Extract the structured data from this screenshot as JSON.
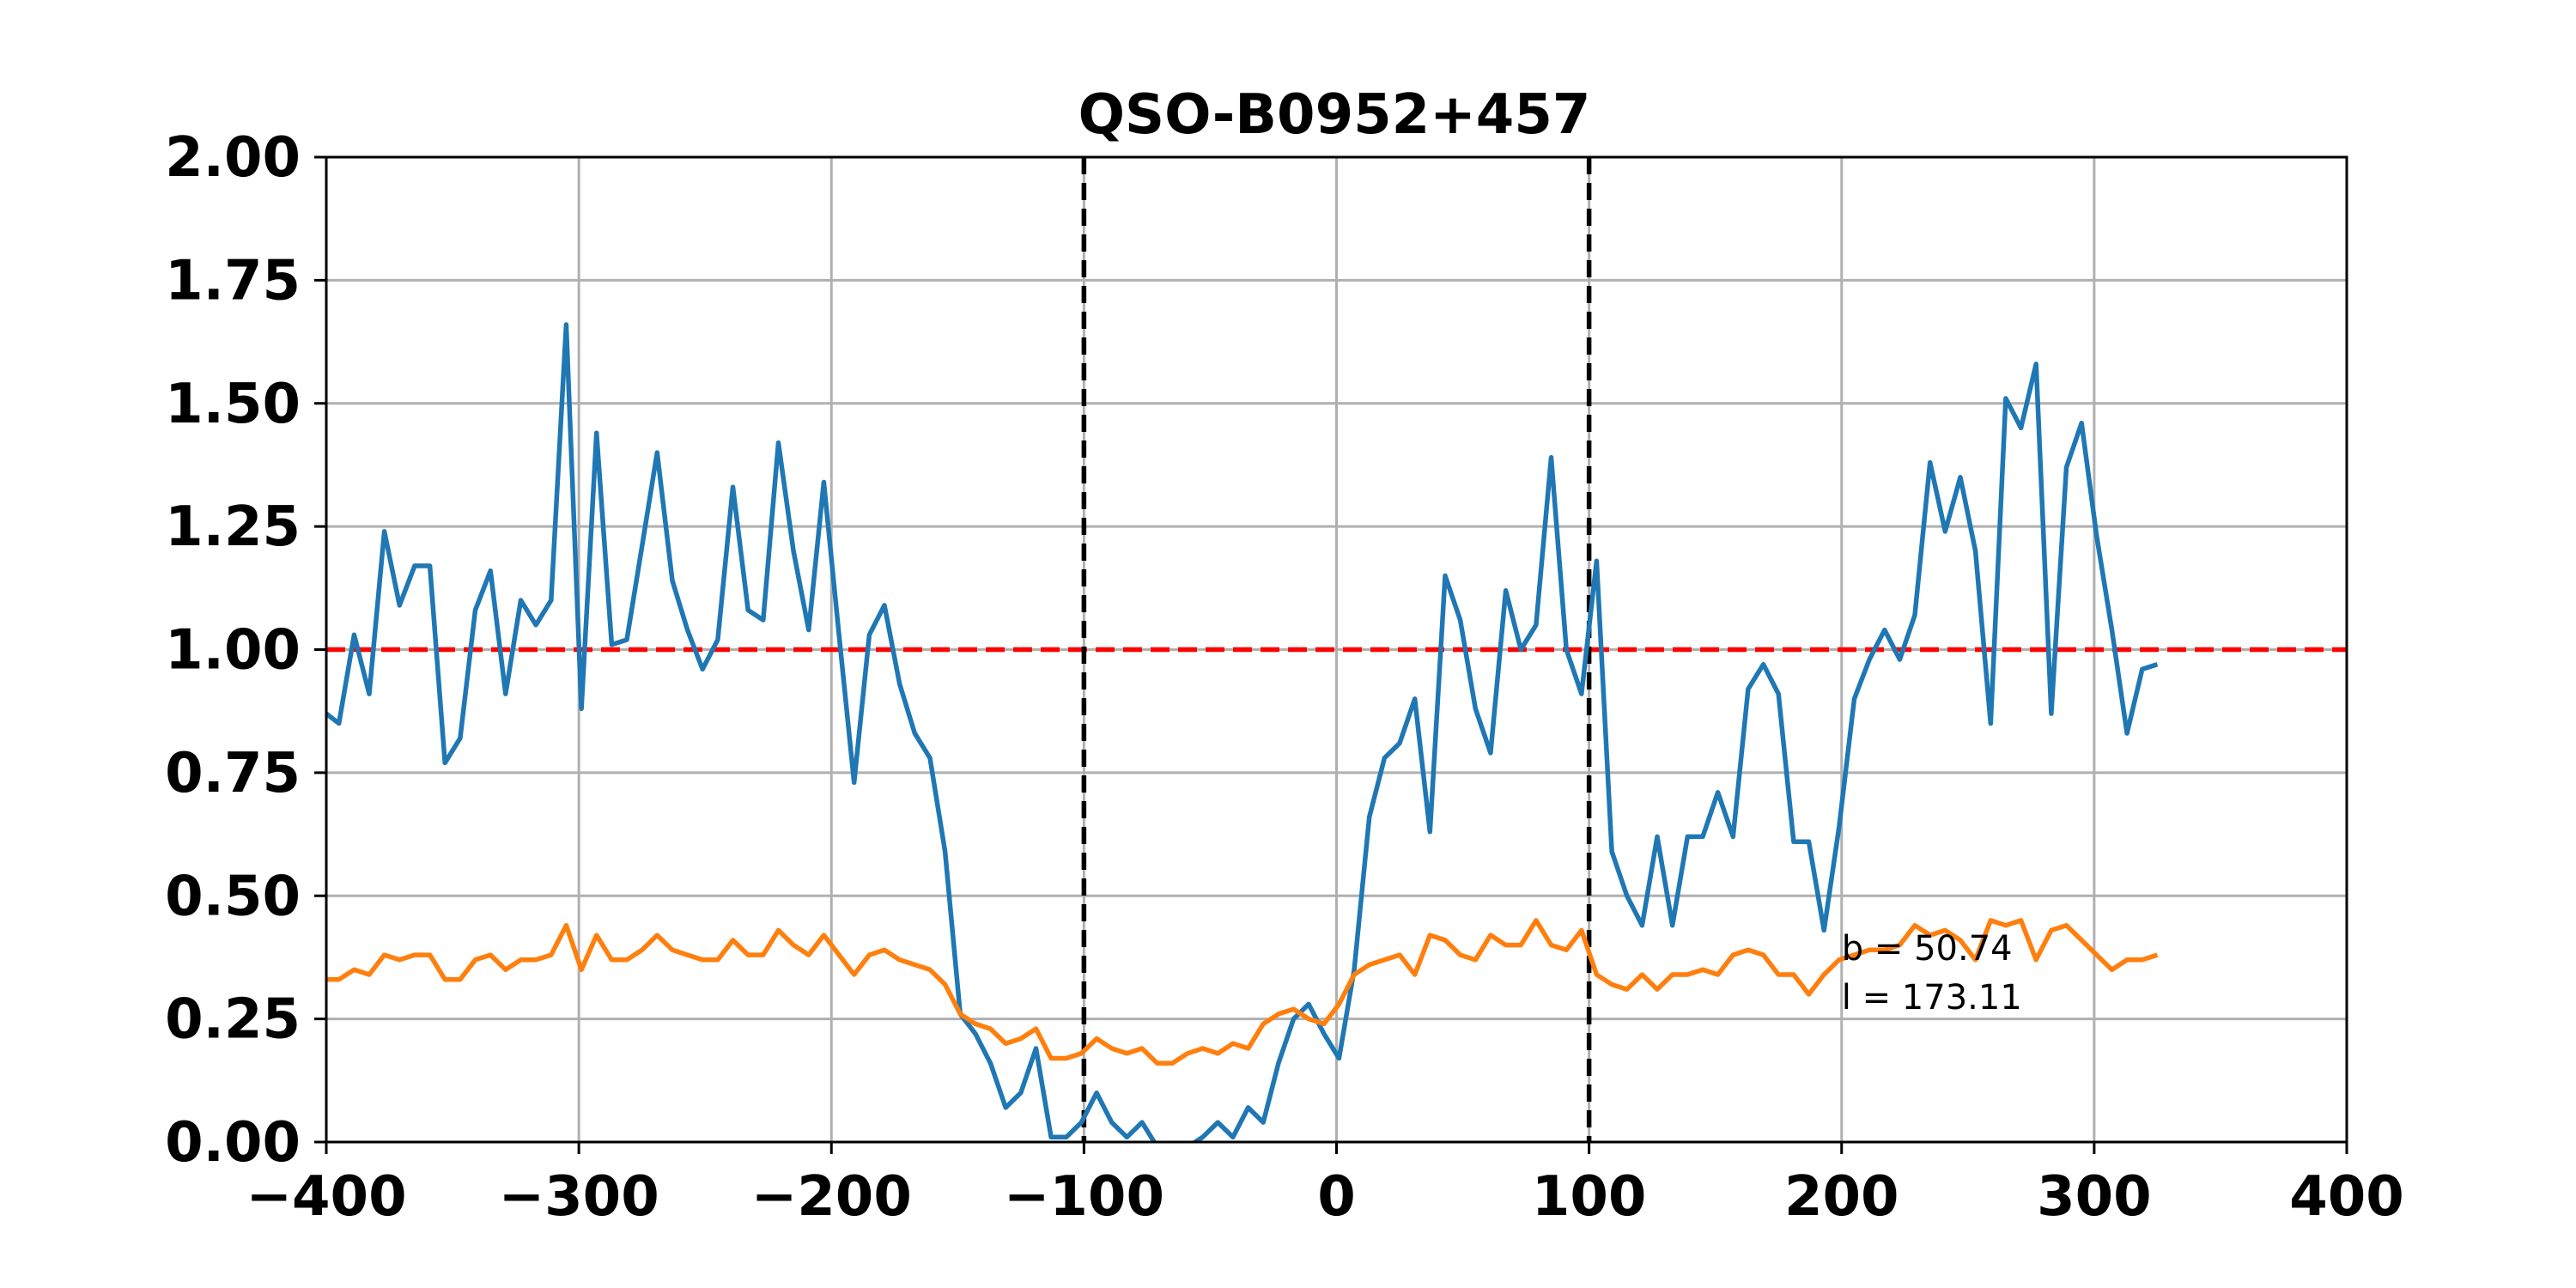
{
  "chart_data": {
    "type": "line",
    "title": "QSO-B0952+457",
    "xlabel": "",
    "ylabel": "",
    "xlim": [
      -400,
      400
    ],
    "ylim": [
      0,
      2
    ],
    "xticks": [
      -400,
      -300,
      -200,
      -100,
      0,
      100,
      200,
      300,
      400
    ],
    "yticks": [
      0,
      0.25,
      0.5,
      0.75,
      1.0,
      1.25,
      1.5,
      1.75,
      2.0
    ],
    "xtick_labels": [
      "−400",
      "−300",
      "−200",
      "−100",
      "0",
      "100",
      "200",
      "300",
      "400"
    ],
    "ytick_labels": [
      "0.00",
      "0.25",
      "0.50",
      "0.75",
      "1.00",
      "1.25",
      "1.50",
      "1.75",
      "2.00"
    ],
    "grid": true,
    "colors": {
      "flux": "#1f77b4",
      "error": "#ff7f0e",
      "continuum": "#ff0000",
      "vline": "#000000",
      "grid": "#b0b0b0"
    },
    "reference_lines": {
      "horizontal": 1.0,
      "vertical": [
        -100,
        100
      ]
    },
    "annotations": [
      {
        "text": "b = 50.74",
        "x": 200,
        "y": 0.37
      },
      {
        "text": "l = 173.11",
        "x": 200,
        "y": 0.27
      }
    ],
    "series": [
      {
        "color": "#1f77b4",
        "points": [
          [
            -400,
            0.87
          ],
          [
            -395,
            0.85
          ],
          [
            -389,
            1.03
          ],
          [
            -383,
            0.91
          ],
          [
            -377,
            1.24
          ],
          [
            -371,
            1.09
          ],
          [
            -365,
            1.17
          ],
          [
            -359,
            1.17
          ],
          [
            -353,
            0.77
          ],
          [
            -347,
            0.82
          ],
          [
            -341,
            1.08
          ],
          [
            -335,
            1.16
          ],
          [
            -329,
            0.91
          ],
          [
            -323,
            1.1
          ],
          [
            -317,
            1.05
          ],
          [
            -311,
            1.1
          ],
          [
            -305,
            1.66
          ],
          [
            -299,
            0.88
          ],
          [
            -293,
            1.44
          ],
          [
            -287,
            1.01
          ],
          [
            -281,
            1.02
          ],
          [
            -275,
            1.21
          ],
          [
            -269,
            1.4
          ],
          [
            -263,
            1.14
          ],
          [
            -257,
            1.04
          ],
          [
            -251,
            0.96
          ],
          [
            -245,
            1.02
          ],
          [
            -239,
            1.33
          ],
          [
            -233,
            1.08
          ],
          [
            -227,
            1.06
          ],
          [
            -221,
            1.42
          ],
          [
            -215,
            1.2
          ],
          [
            -209,
            1.04
          ],
          [
            -203,
            1.34
          ],
          [
            -197,
            1.03
          ],
          [
            -191,
            0.73
          ],
          [
            -185,
            1.03
          ],
          [
            -179,
            1.09
          ],
          [
            -173,
            0.93
          ],
          [
            -167,
            0.83
          ],
          [
            -161,
            0.78
          ],
          [
            -155,
            0.59
          ],
          [
            -149,
            0.26
          ],
          [
            -143,
            0.22
          ],
          [
            -137,
            0.16
          ],
          [
            -131,
            0.07
          ],
          [
            -125,
            0.1
          ],
          [
            -119,
            0.19
          ],
          [
            -113,
            0.01
          ],
          [
            -107,
            0.01
          ],
          [
            -101,
            0.04
          ],
          [
            -95,
            0.1
          ],
          [
            -89,
            0.04
          ],
          [
            -83,
            0.01
          ],
          [
            -77,
            0.04
          ],
          [
            -71,
            -0.01
          ],
          [
            -65,
            -0.02
          ],
          [
            -59,
            -0.01
          ],
          [
            -53,
            0.01
          ],
          [
            -47,
            0.04
          ],
          [
            -41,
            0.01
          ],
          [
            -35,
            0.07
          ],
          [
            -29,
            0.04
          ],
          [
            -23,
            0.16
          ],
          [
            -17,
            0.25
          ],
          [
            -11,
            0.28
          ],
          [
            -5,
            0.22
          ],
          [
            1,
            0.17
          ],
          [
            7,
            0.35
          ],
          [
            13,
            0.66
          ],
          [
            19,
            0.78
          ],
          [
            25,
            0.81
          ],
          [
            31,
            0.9
          ],
          [
            37,
            0.63
          ],
          [
            43,
            1.15
          ],
          [
            49,
            1.06
          ],
          [
            55,
            0.88
          ],
          [
            61,
            0.79
          ],
          [
            67,
            1.12
          ],
          [
            73,
            1.0
          ],
          [
            79,
            1.05
          ],
          [
            85,
            1.39
          ],
          [
            91,
            1.0
          ],
          [
            97,
            0.91
          ],
          [
            103,
            1.18
          ],
          [
            109,
            0.59
          ],
          [
            115,
            0.5
          ],
          [
            121,
            0.44
          ],
          [
            127,
            0.62
          ],
          [
            133,
            0.44
          ],
          [
            139,
            0.62
          ],
          [
            145,
            0.62
          ],
          [
            151,
            0.71
          ],
          [
            157,
            0.62
          ],
          [
            163,
            0.92
          ],
          [
            169,
            0.97
          ],
          [
            175,
            0.91
          ],
          [
            181,
            0.61
          ],
          [
            187,
            0.61
          ],
          [
            193,
            0.43
          ],
          [
            199,
            0.64
          ],
          [
            205,
            0.9
          ],
          [
            211,
            0.98
          ],
          [
            217,
            1.04
          ],
          [
            223,
            0.98
          ],
          [
            229,
            1.07
          ],
          [
            235,
            1.38
          ],
          [
            241,
            1.24
          ],
          [
            247,
            1.35
          ],
          [
            253,
            1.2
          ],
          [
            259,
            0.85
          ],
          [
            265,
            1.51
          ],
          [
            271,
            1.45
          ],
          [
            277,
            1.58
          ],
          [
            283,
            0.87
          ],
          [
            289,
            1.37
          ],
          [
            295,
            1.46
          ],
          [
            301,
            1.23
          ],
          [
            307,
            1.04
          ],
          [
            313,
            0.83
          ],
          [
            319,
            0.96
          ],
          [
            325,
            0.97
          ]
        ]
      },
      {
        "color": "#ff7f0e",
        "points": [
          [
            -400,
            0.33
          ],
          [
            -395,
            0.33
          ],
          [
            -389,
            0.35
          ],
          [
            -383,
            0.34
          ],
          [
            -377,
            0.38
          ],
          [
            -371,
            0.37
          ],
          [
            -365,
            0.38
          ],
          [
            -359,
            0.38
          ],
          [
            -353,
            0.33
          ],
          [
            -347,
            0.33
          ],
          [
            -341,
            0.37
          ],
          [
            -335,
            0.38
          ],
          [
            -329,
            0.35
          ],
          [
            -323,
            0.37
          ],
          [
            -317,
            0.37
          ],
          [
            -311,
            0.38
          ],
          [
            -305,
            0.44
          ],
          [
            -299,
            0.35
          ],
          [
            -293,
            0.42
          ],
          [
            -287,
            0.37
          ],
          [
            -281,
            0.37
          ],
          [
            -275,
            0.39
          ],
          [
            -269,
            0.42
          ],
          [
            -263,
            0.39
          ],
          [
            -257,
            0.38
          ],
          [
            -251,
            0.37
          ],
          [
            -245,
            0.37
          ],
          [
            -239,
            0.41
          ],
          [
            -233,
            0.38
          ],
          [
            -227,
            0.38
          ],
          [
            -221,
            0.43
          ],
          [
            -215,
            0.4
          ],
          [
            -209,
            0.38
          ],
          [
            -203,
            0.42
          ],
          [
            -197,
            0.38
          ],
          [
            -191,
            0.34
          ],
          [
            -185,
            0.38
          ],
          [
            -179,
            0.39
          ],
          [
            -173,
            0.37
          ],
          [
            -167,
            0.36
          ],
          [
            -161,
            0.35
          ],
          [
            -155,
            0.32
          ],
          [
            -149,
            0.26
          ],
          [
            -143,
            0.24
          ],
          [
            -137,
            0.23
          ],
          [
            -131,
            0.2
          ],
          [
            -125,
            0.21
          ],
          [
            -119,
            0.23
          ],
          [
            -113,
            0.17
          ],
          [
            -107,
            0.17
          ],
          [
            -101,
            0.18
          ],
          [
            -95,
            0.21
          ],
          [
            -89,
            0.19
          ],
          [
            -83,
            0.18
          ],
          [
            -77,
            0.19
          ],
          [
            -71,
            0.16
          ],
          [
            -65,
            0.16
          ],
          [
            -59,
            0.18
          ],
          [
            -53,
            0.19
          ],
          [
            -47,
            0.18
          ],
          [
            -41,
            0.2
          ],
          [
            -35,
            0.19
          ],
          [
            -29,
            0.24
          ],
          [
            -23,
            0.26
          ],
          [
            -17,
            0.27
          ],
          [
            -11,
            0.25
          ],
          [
            -5,
            0.24
          ],
          [
            1,
            0.28
          ],
          [
            7,
            0.34
          ],
          [
            13,
            0.36
          ],
          [
            19,
            0.37
          ],
          [
            25,
            0.38
          ],
          [
            31,
            0.34
          ],
          [
            37,
            0.42
          ],
          [
            43,
            0.41
          ],
          [
            49,
            0.38
          ],
          [
            55,
            0.37
          ],
          [
            61,
            0.42
          ],
          [
            67,
            0.4
          ],
          [
            73,
            0.4
          ],
          [
            79,
            0.45
          ],
          [
            85,
            0.4
          ],
          [
            91,
            0.39
          ],
          [
            97,
            0.43
          ],
          [
            103,
            0.34
          ],
          [
            109,
            0.32
          ],
          [
            115,
            0.31
          ],
          [
            121,
            0.34
          ],
          [
            127,
            0.31
          ],
          [
            133,
            0.34
          ],
          [
            139,
            0.34
          ],
          [
            145,
            0.35
          ],
          [
            151,
            0.34
          ],
          [
            157,
            0.38
          ],
          [
            163,
            0.39
          ],
          [
            169,
            0.38
          ],
          [
            175,
            0.34
          ],
          [
            181,
            0.34
          ],
          [
            187,
            0.3
          ],
          [
            193,
            0.34
          ],
          [
            199,
            0.37
          ],
          [
            205,
            0.38
          ],
          [
            211,
            0.39
          ],
          [
            217,
            0.39
          ],
          [
            223,
            0.4
          ],
          [
            229,
            0.44
          ],
          [
            235,
            0.42
          ],
          [
            241,
            0.43
          ],
          [
            247,
            0.41
          ],
          [
            253,
            0.37
          ],
          [
            259,
            0.45
          ],
          [
            265,
            0.44
          ],
          [
            271,
            0.45
          ],
          [
            277,
            0.37
          ],
          [
            283,
            0.43
          ],
          [
            289,
            0.44
          ],
          [
            295,
            0.41
          ],
          [
            301,
            0.38
          ],
          [
            307,
            0.35
          ],
          [
            313,
            0.37
          ],
          [
            319,
            0.37
          ],
          [
            325,
            0.38
          ]
        ]
      }
    ]
  }
}
